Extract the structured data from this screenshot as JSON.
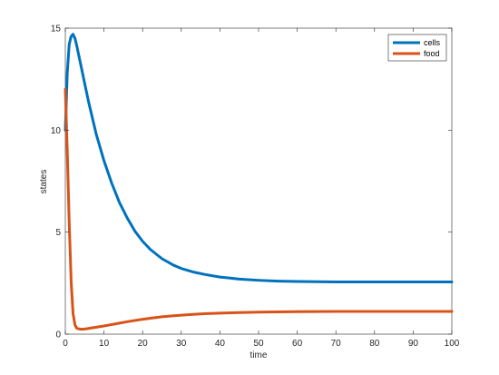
{
  "chart_data": {
    "type": "line",
    "xlabel": "time",
    "ylabel": "states",
    "xlim": [
      0,
      100
    ],
    "ylim": [
      0,
      15
    ],
    "xticks": [
      "0",
      "10",
      "20",
      "30",
      "40",
      "50",
      "60",
      "70",
      "80",
      "90",
      "100"
    ],
    "yticks": [
      "0",
      "5",
      "10",
      "15"
    ],
    "grid": false,
    "legend_position": "top-right",
    "x": [
      0,
      0.5,
      1,
      1.5,
      2,
      2.5,
      3,
      4,
      5,
      6,
      7,
      8,
      10,
      12,
      14,
      16,
      18,
      20,
      22,
      25,
      28,
      30,
      33,
      36,
      40,
      45,
      50,
      55,
      60,
      65,
      70,
      75,
      80,
      85,
      90,
      95,
      100
    ],
    "series": [
      {
        "name": "cells",
        "color": "#0072BD",
        "values": [
          10.0,
          12.8,
          14.2,
          14.6,
          14.7,
          14.5,
          14.1,
          13.2,
          12.3,
          11.4,
          10.6,
          9.8,
          8.5,
          7.4,
          6.45,
          5.7,
          5.05,
          4.55,
          4.15,
          3.7,
          3.38,
          3.22,
          3.05,
          2.93,
          2.8,
          2.7,
          2.64,
          2.6,
          2.58,
          2.57,
          2.56,
          2.56,
          2.56,
          2.56,
          2.56,
          2.56,
          2.56
        ]
      },
      {
        "name": "food",
        "color": "#D95319",
        "values": [
          12.0,
          9.0,
          5.5,
          2.6,
          1.0,
          0.45,
          0.28,
          0.24,
          0.25,
          0.28,
          0.31,
          0.34,
          0.4,
          0.47,
          0.54,
          0.61,
          0.67,
          0.73,
          0.78,
          0.85,
          0.9,
          0.93,
          0.97,
          1.0,
          1.03,
          1.06,
          1.08,
          1.09,
          1.1,
          1.105,
          1.11,
          1.11,
          1.11,
          1.11,
          1.11,
          1.11,
          1.11
        ]
      }
    ]
  }
}
